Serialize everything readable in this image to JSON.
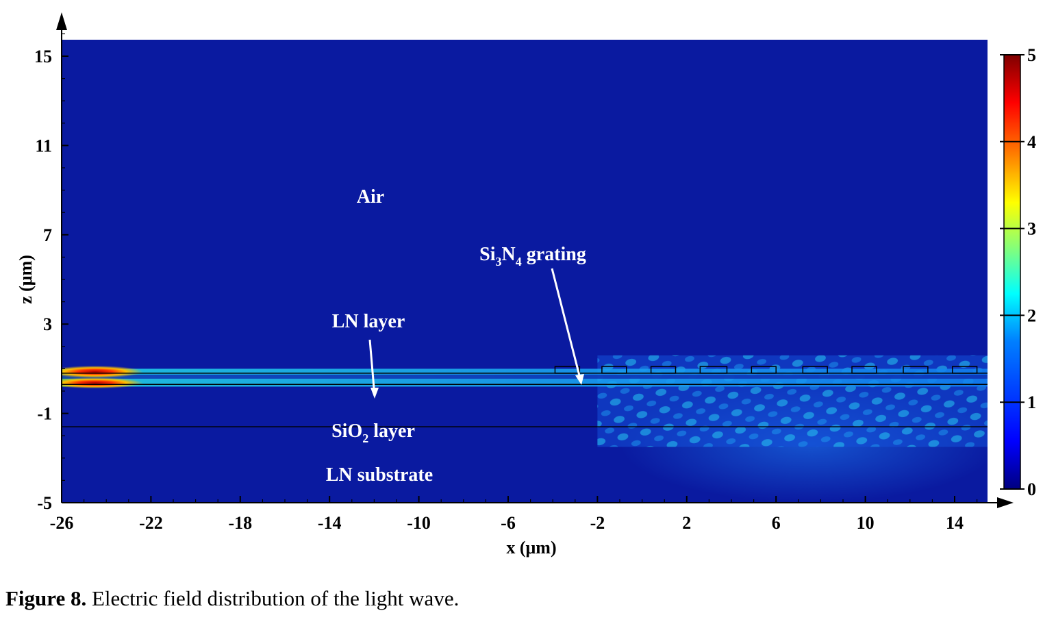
{
  "chart_data": {
    "type": "heatmap",
    "quantity": "electric field magnitude",
    "xlabel": "x (μm)",
    "ylabel": "z (μm)",
    "xlim": [
      -26,
      16
    ],
    "ylim": [
      -5,
      16
    ],
    "xticks": [
      -26,
      -22,
      -18,
      -14,
      -10,
      -6,
      -2,
      2,
      6,
      10,
      14
    ],
    "yticks": [
      -5,
      -1,
      3,
      7,
      11,
      15
    ],
    "colorbar": {
      "min": 0,
      "max": 5,
      "ticks": [
        0,
        1,
        2,
        3,
        4,
        5
      ],
      "colormap": "jet"
    },
    "layers": [
      {
        "name": "Air",
        "z_range": [
          0.8,
          16
        ]
      },
      {
        "name": "LN layer",
        "z_range": [
          0.3,
          0.8
        ]
      },
      {
        "name": "SiO2 layer",
        "z_range": [
          -1.6,
          0.3
        ]
      },
      {
        "name": "LN substrate",
        "z_range": [
          -5,
          -1.6
        ]
      }
    ],
    "interfaces_z": [
      0.8,
      0.3,
      -1.6
    ],
    "grating": {
      "material": "Si3N4",
      "z_range": [
        0.8,
        1.1
      ],
      "teeth_x": [
        [
          -3.9,
          -2.8
        ],
        [
          -1.8,
          -0.7
        ],
        [
          0.4,
          1.5
        ],
        [
          2.6,
          3.8
        ],
        [
          4.9,
          6.0
        ],
        [
          7.2,
          8.3
        ],
        [
          9.4,
          10.5
        ],
        [
          11.7,
          12.8
        ],
        [
          13.9,
          15.0
        ]
      ]
    },
    "field_features": [
      {
        "region": "guided mode in LN layer",
        "x_range": [
          -26,
          16
        ],
        "z_range": [
          0.2,
          1.0
        ],
        "peak_value": 4.8,
        "peak_x": -24.5
      },
      {
        "region": "grating scattering pattern",
        "x_range": [
          -2,
          16
        ],
        "z_range": [
          -2.5,
          1.6
        ],
        "typical_value": 1.5
      },
      {
        "region": "radiation into substrate",
        "x_range": [
          -1,
          16
        ],
        "z_range": [
          -5,
          -1.6
        ],
        "typical_value": 0.8
      }
    ],
    "annotations": [
      {
        "text": "Air"
      },
      {
        "text": "LN layer"
      },
      {
        "text": "SiO",
        "sub": "2",
        "rest": " layer"
      },
      {
        "text": "LN substrate"
      },
      {
        "text": "Si",
        "sub": "3",
        "rest": "N",
        "sub2": "4",
        "rest2": " grating"
      }
    ]
  },
  "caption": {
    "label": "Figure 8.",
    "text": " Electric field distribution of the light wave."
  },
  "colors": {
    "background_field": "#0a1aa0",
    "colormap_stops": [
      "#00007f",
      "#0000ff",
      "#007fff",
      "#00ffff",
      "#7fff7f",
      "#ffff00",
      "#ff7f00",
      "#ff0000",
      "#7f0000"
    ]
  }
}
